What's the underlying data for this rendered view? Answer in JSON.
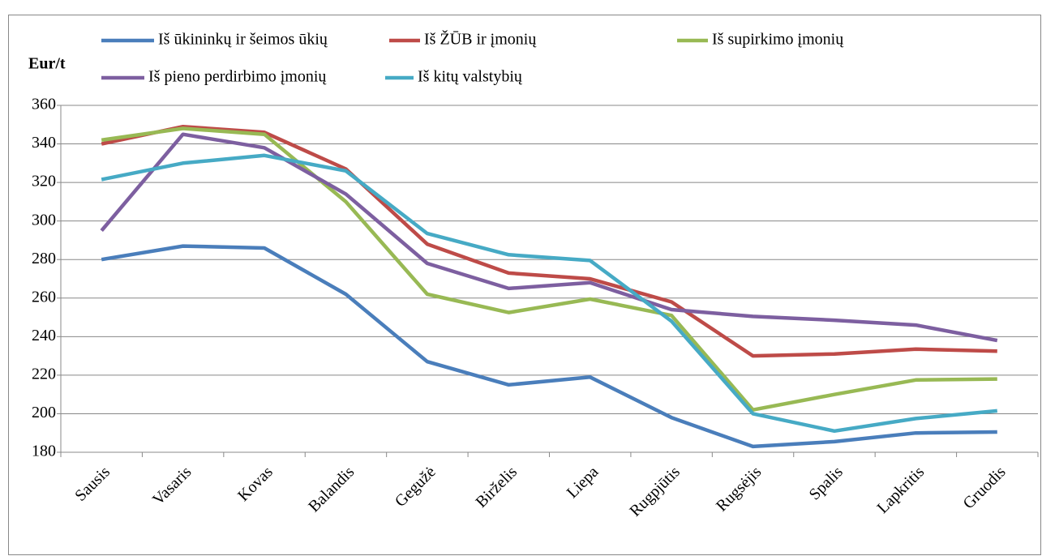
{
  "chart_data": {
    "type": "line",
    "y_label": "Eur/t",
    "categories": [
      "Sausis",
      "Vasaris",
      "Kovas",
      "Balandis",
      "Gegužė",
      "Birželis",
      "Liepa",
      "Rugpjūtis",
      "Rugsėjis",
      "Spalis",
      "Lapkritis",
      "Gruodis"
    ],
    "series": [
      {
        "name": "Iš ūkininkų ir šeimos ūkių",
        "color": "#4a7ebb",
        "values": [
          280,
          287,
          286,
          262,
          227,
          215,
          219,
          198,
          183,
          185.5,
          190,
          190.5
        ]
      },
      {
        "name": "Iš ŽŪB ir įmonių",
        "color": "#be4b48",
        "values": [
          340,
          349,
          346,
          327,
          288,
          273,
          270,
          258,
          230,
          231,
          233.5,
          232.5
        ]
      },
      {
        "name": "Iš supirkimo įmonių",
        "color": "#98b954",
        "values": [
          342,
          348,
          345,
          310,
          262,
          252.5,
          259.5,
          251,
          202,
          210,
          217.5,
          218
        ]
      },
      {
        "name": "Iš pieno perdirbimo įmonių",
        "color": "#7d5fa0",
        "values": [
          295,
          345,
          338,
          314,
          278,
          265,
          268,
          254,
          250.5,
          248.5,
          246,
          238
        ]
      },
      {
        "name": "Iš kitų valstybių",
        "color": "#46aac5",
        "values": [
          321.5,
          330,
          334,
          326,
          293.5,
          282.5,
          279.5,
          248,
          200,
          191,
          197.5,
          201.5
        ]
      }
    ],
    "ylim": [
      180,
      360
    ],
    "yticks": [
      180,
      200,
      220,
      240,
      260,
      280,
      300,
      320,
      340,
      360
    ],
    "grid": true
  }
}
